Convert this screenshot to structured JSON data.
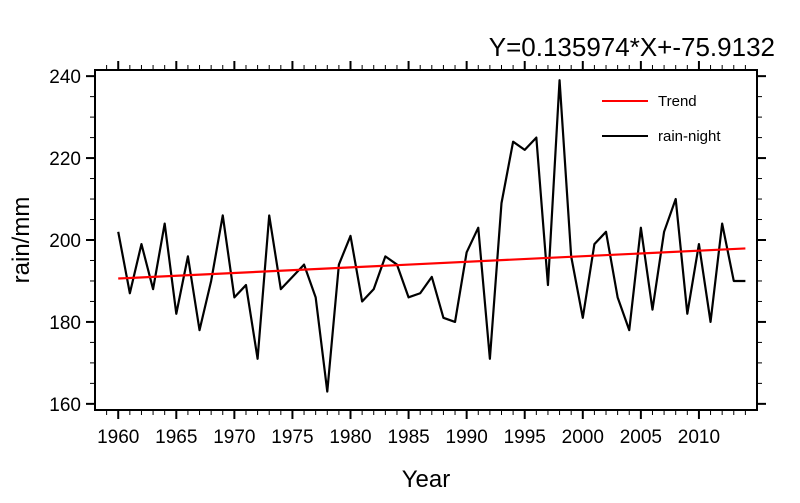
{
  "chart_data": {
    "type": "line",
    "title": "Y=0.135974*X+-75.9132",
    "xlabel": "Year",
    "ylabel": "rain/mm",
    "xlim": [
      1958,
      2015
    ],
    "ylim": [
      158.5,
      241.5
    ],
    "x_major_ticks": [
      1960,
      1965,
      1970,
      1975,
      1980,
      1985,
      1990,
      1995,
      2000,
      2005,
      2010
    ],
    "y_major_ticks": [
      160,
      180,
      200,
      220,
      240
    ],
    "x_minor_step": 1,
    "y_minor_step": 5,
    "grid": false,
    "legend_position": "upper-right-inside",
    "x": [
      1960,
      1961,
      1962,
      1963,
      1964,
      1965,
      1966,
      1967,
      1968,
      1969,
      1970,
      1971,
      1972,
      1973,
      1974,
      1975,
      1976,
      1977,
      1978,
      1979,
      1980,
      1981,
      1982,
      1983,
      1984,
      1985,
      1986,
      1987,
      1988,
      1989,
      1990,
      1991,
      1992,
      1993,
      1994,
      1995,
      1996,
      1997,
      1998,
      1999,
      2000,
      2001,
      2002,
      2003,
      2004,
      2005,
      2006,
      2007,
      2008,
      2009,
      2010,
      2011,
      2012,
      2013,
      2014
    ],
    "series": [
      {
        "name": "rain-night",
        "color": "#000000",
        "values": [
          202,
          187,
          199,
          188,
          204,
          182,
          196,
          178,
          190,
          206,
          186,
          189,
          171,
          206,
          188,
          191,
          194,
          186,
          163,
          194,
          201,
          185,
          188,
          196,
          194,
          186,
          187,
          191,
          181,
          180,
          197,
          203,
          171,
          209,
          224,
          222,
          225,
          189,
          239,
          196,
          181,
          199,
          202,
          186,
          178,
          203,
          183,
          202,
          210,
          182,
          199,
          180,
          204,
          190,
          190
        ]
      }
    ],
    "trend": {
      "name": "Trend",
      "color": "#ff0000",
      "slope": 0.135974,
      "intercept": -75.9132,
      "x_start": 1960,
      "x_end": 2014
    },
    "legend": [
      {
        "label": "Trend",
        "color": "#ff0000"
      },
      {
        "label": "rain-night",
        "color": "#000000"
      }
    ]
  }
}
